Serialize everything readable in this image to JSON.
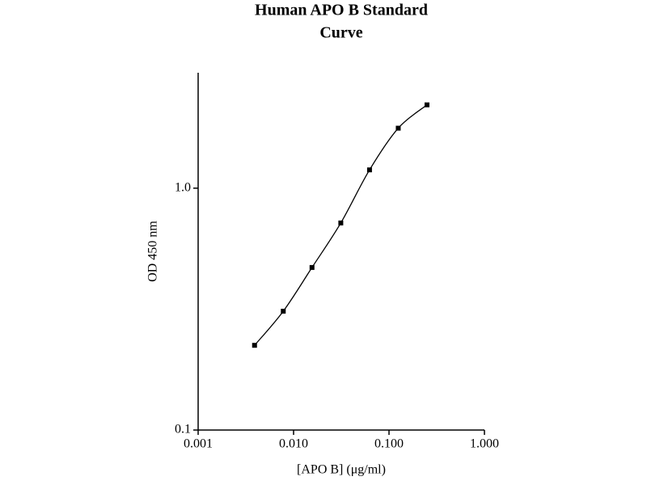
{
  "chart_data": {
    "type": "line",
    "title": [
      "Human APO B Standard",
      "Curve"
    ],
    "xlabel": "[APO B] (μg/ml)",
    "ylabel": "OD 450 nm",
    "xscale": "log",
    "yscale": "log",
    "xlim": [
      0.001,
      1
    ],
    "ylim": [
      0.1,
      3.0
    ],
    "xticks": [
      {
        "value": 0.001,
        "label": "0.001"
      },
      {
        "value": 0.01,
        "label": "0.010"
      },
      {
        "value": 0.1,
        "label": "0.100"
      },
      {
        "value": 1,
        "label": "1.000"
      }
    ],
    "yticks": [
      0.1,
      {
        "value": 1,
        "label": "1.0"
      }
    ],
    "series": [
      {
        "color": "#000000",
        "marker": "square",
        "x": [
          0.0039,
          0.0078,
          0.0156,
          0.03125,
          0.0625,
          0.125,
          0.25
        ],
        "values": [
          0.224,
          0.31,
          0.47,
          0.718,
          1.19,
          1.77,
          2.21
        ]
      }
    ]
  }
}
